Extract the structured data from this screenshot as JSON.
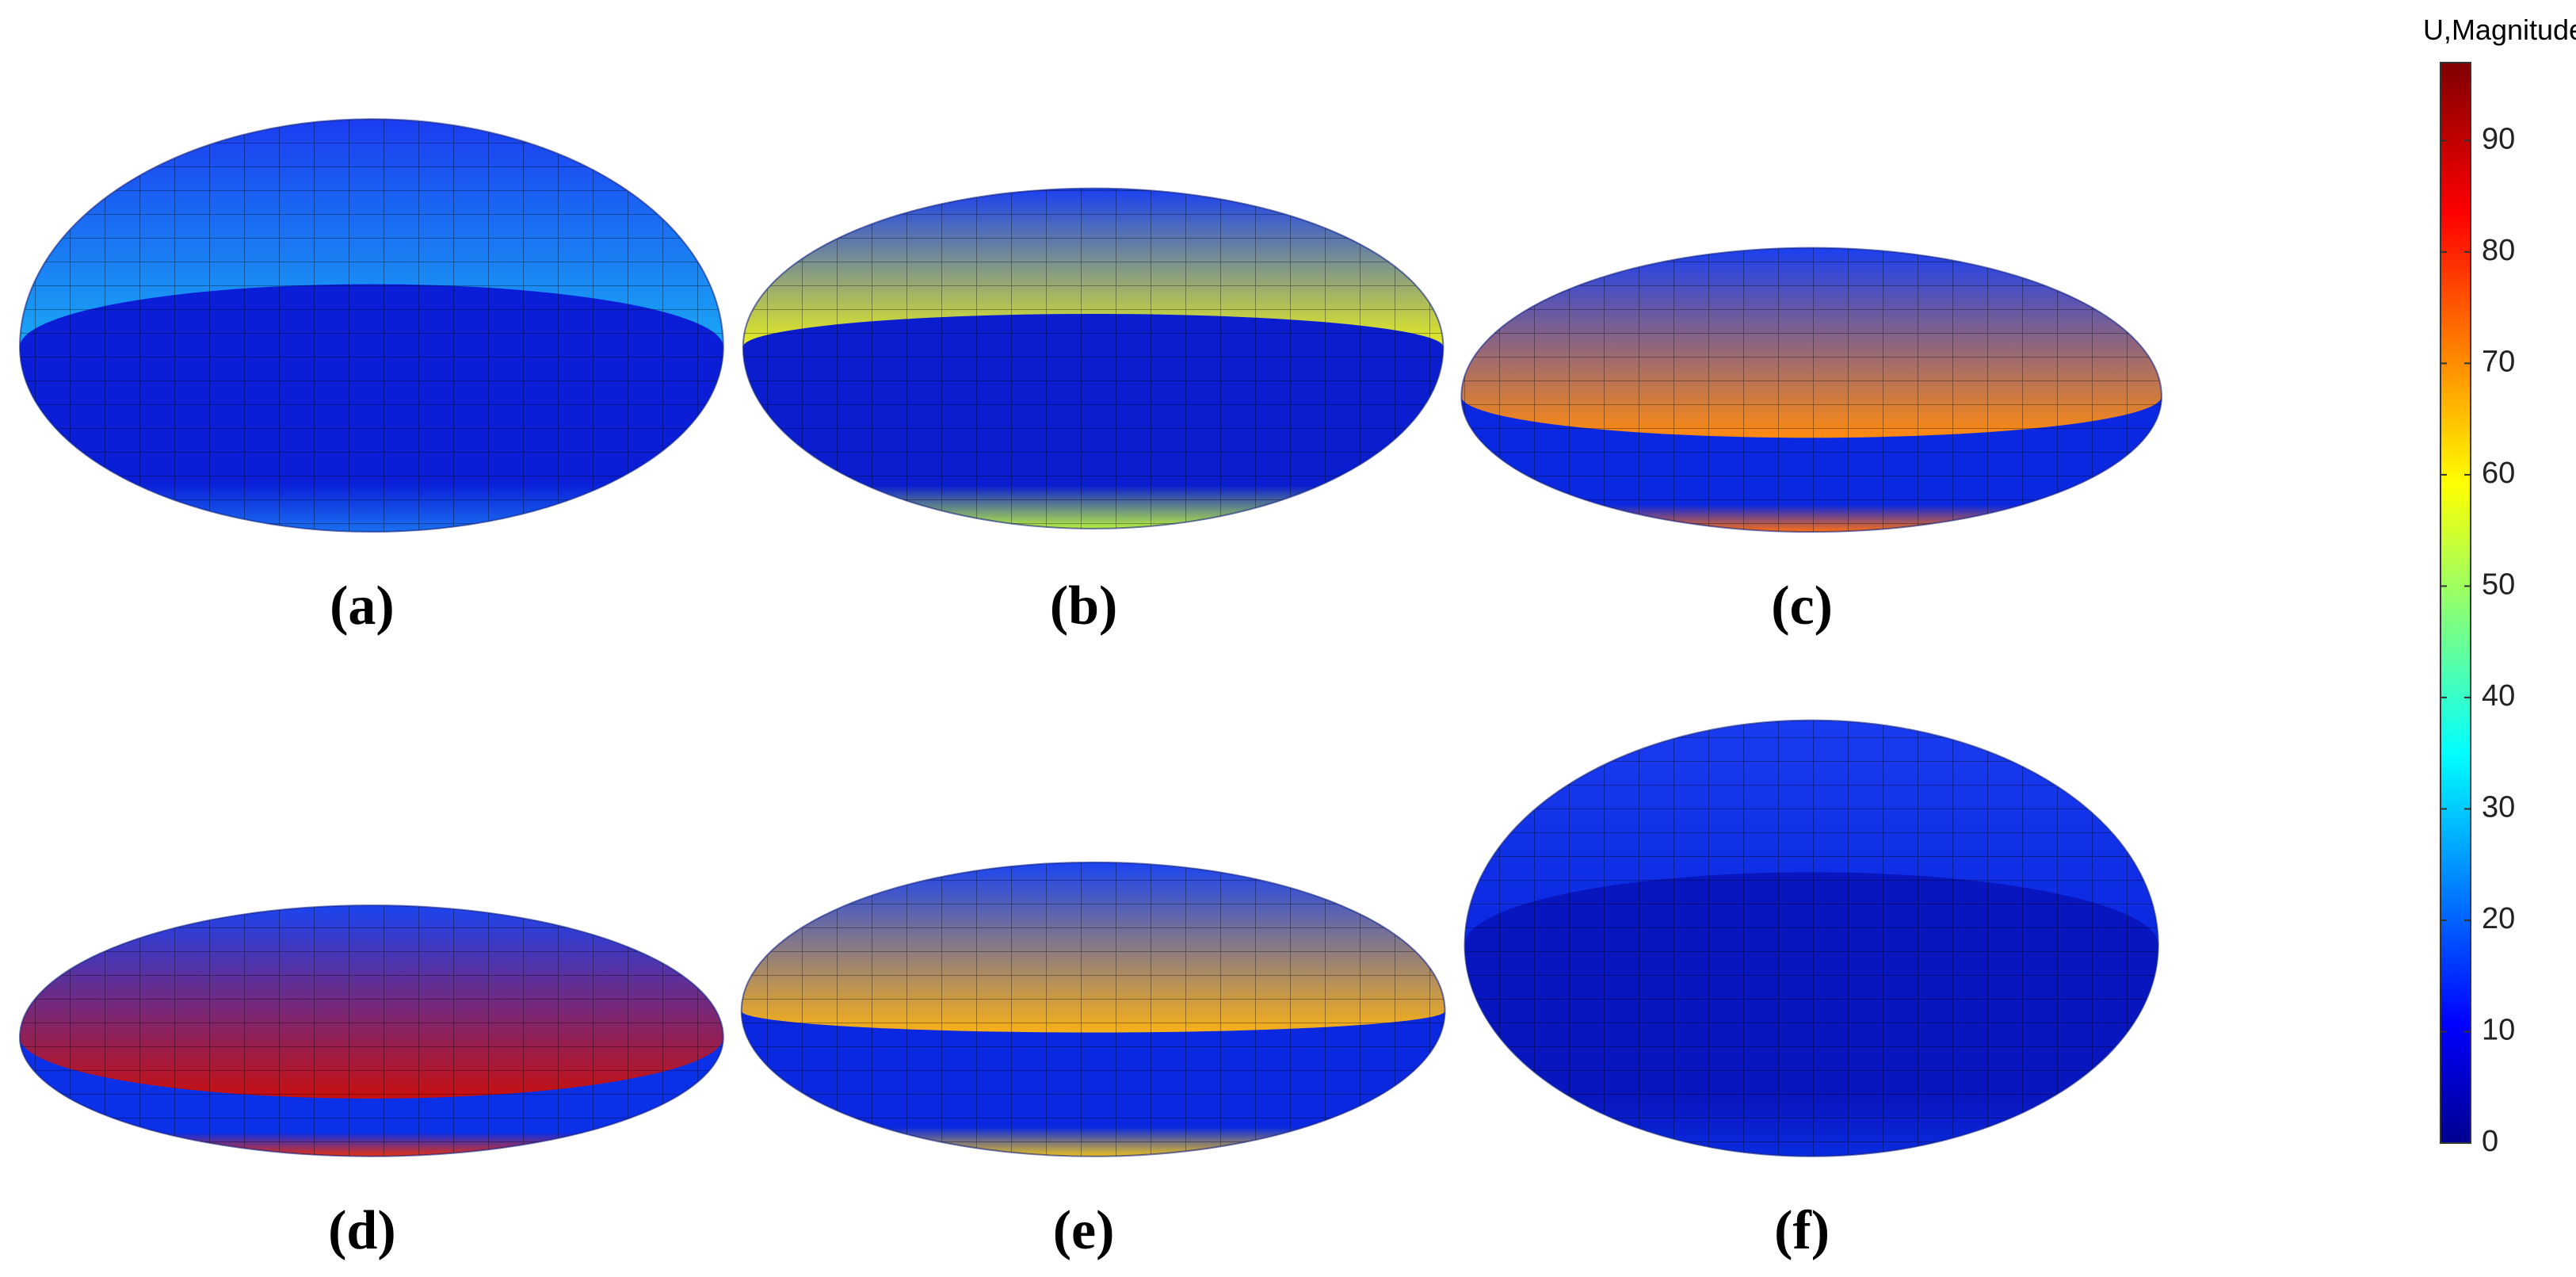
{
  "colorbar": {
    "title": "U,Magnitude",
    "lim": [
      0,
      97
    ],
    "ticks": [
      0,
      10,
      20,
      30,
      40,
      50,
      60,
      70,
      80,
      90
    ]
  },
  "panels": [
    {
      "label": "(a)"
    },
    {
      "label": "(b)"
    },
    {
      "label": "(c)"
    },
    {
      "label": "(d)"
    },
    {
      "label": "(e)"
    },
    {
      "label": "(f)"
    }
  ]
}
